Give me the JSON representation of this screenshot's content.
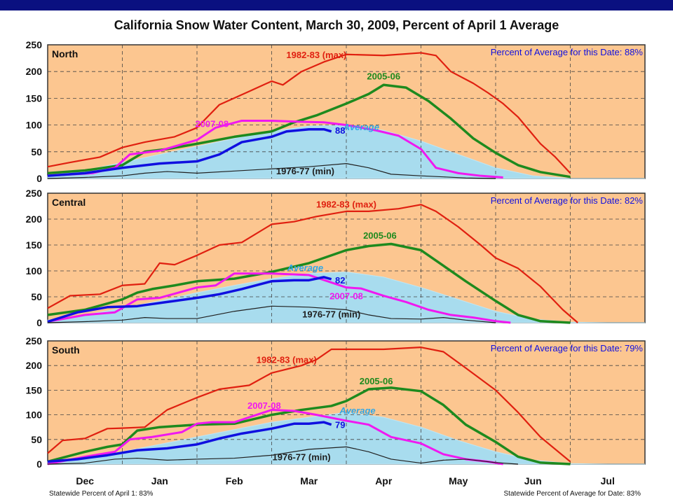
{
  "title": "California Snow Water Content, March 30, 2009, Percent of April 1 Average",
  "footer": {
    "left": "Statewide Percent of April 1: 83%",
    "right": "Statewide Percent of Average for Date: 83%"
  },
  "colors": {
    "background": "#FCC690",
    "average_fill": "#A8DCEE",
    "max": "#E02010",
    "y2005": "#1E8A1E",
    "y2007": "#F018F0",
    "current": "#1010E0",
    "min": "#202020",
    "average_label": "#30A8E8",
    "percent_label": "#1010E0"
  },
  "chart_data": [
    {
      "type": "line",
      "panel": "North",
      "note": "Percent of Average for this Date:  88%",
      "ylim": [
        0,
        250
      ],
      "yticks": [
        "0",
        "50",
        "100",
        "150",
        "200",
        "250"
      ],
      "xticks": [
        "Dec",
        "Jan",
        "Feb",
        "Mar",
        "Apr",
        "May",
        "Jun",
        "Jul"
      ],
      "xlim": [
        0,
        8
      ],
      "series": [
        {
          "name": "Average",
          "kind": "area",
          "x": [
            0,
            0.5,
            1,
            1.5,
            2,
            2.5,
            3,
            3.5,
            4,
            4.5,
            5,
            5.5,
            6,
            6.5,
            7,
            7.5,
            8
          ],
          "y": [
            5,
            15,
            30,
            45,
            60,
            75,
            88,
            98,
            100,
            90,
            70,
            45,
            20,
            5,
            0,
            0,
            0
          ]
        },
        {
          "name": "1982-83 (max)",
          "kind": "max",
          "x": [
            0,
            0.3,
            0.7,
            1,
            1.3,
            1.7,
            2,
            2.3,
            2.7,
            3,
            3.15,
            3.4,
            3.7,
            4,
            4.5,
            5,
            5.2,
            5.4,
            5.7,
            5.9,
            6.1,
            6.3,
            6.6,
            6.8,
            7
          ],
          "y": [
            22,
            30,
            40,
            58,
            68,
            78,
            95,
            138,
            163,
            182,
            175,
            200,
            218,
            232,
            230,
            235,
            230,
            200,
            178,
            160,
            140,
            115,
            65,
            40,
            10
          ]
        },
        {
          "name": "2005-06",
          "kind": "y2005",
          "x": [
            0,
            0.5,
            1,
            1.3,
            1.6,
            2,
            2.5,
            3,
            3.3,
            3.6,
            4,
            4.3,
            4.5,
            4.8,
            5.1,
            5.4,
            5.7,
            6,
            6.3,
            6.6,
            7
          ],
          "y": [
            10,
            15,
            25,
            50,
            55,
            65,
            78,
            88,
            105,
            118,
            140,
            158,
            175,
            170,
            145,
            112,
            75,
            48,
            25,
            12,
            3
          ]
        },
        {
          "name": "2007-08",
          "kind": "y2007",
          "x": [
            0,
            0.6,
            0.9,
            1.1,
            1.5,
            2,
            2.25,
            2.6,
            3,
            3.4,
            3.7,
            4,
            4.4,
            4.7,
            5,
            5.2,
            5.5,
            5.8,
            6.1
          ],
          "y": [
            5,
            10,
            20,
            45,
            52,
            72,
            95,
            108,
            108,
            106,
            105,
            100,
            90,
            80,
            55,
            20,
            10,
            5,
            2
          ]
        },
        {
          "name": "2009",
          "kind": "current",
          "x": [
            0,
            0.5,
            1,
            1.5,
            2,
            2.3,
            2.6,
            3,
            3.2,
            3.5,
            3.7,
            3.8
          ],
          "y": [
            5,
            10,
            20,
            28,
            32,
            45,
            68,
            78,
            88,
            92,
            92,
            88
          ]
        },
        {
          "name": "1976-77 (min)",
          "kind": "min",
          "x": [
            0,
            0.5,
            1,
            1.3,
            1.6,
            2,
            2.5,
            3,
            3.5,
            4,
            4.3,
            4.6,
            5,
            5.3,
            5.6,
            6
          ],
          "y": [
            0,
            2,
            5,
            10,
            13,
            10,
            14,
            18,
            22,
            28,
            20,
            8,
            5,
            3,
            1,
            0
          ]
        }
      ],
      "labels": [
        {
          "text": "1982-83 (max)",
          "kind": "max",
          "x": 3.6,
          "y": 225
        },
        {
          "text": "2005-06",
          "kind": "y2005",
          "x": 4.5,
          "y": 185
        },
        {
          "text": "2007-08",
          "kind": "y2007",
          "x": 2.2,
          "y": 96
        },
        {
          "text": "Average",
          "kind": "average_label",
          "x": 4.2,
          "y": 90,
          "italic": true
        },
        {
          "text": "88",
          "kind": "current",
          "x": 3.85,
          "y": 84
        },
        {
          "text": "1976-77 (min)",
          "kind": "min",
          "x": 3.45,
          "y": 8
        }
      ]
    },
    {
      "type": "line",
      "panel": "Central",
      "note": "Percent of Average for this Date:  82%",
      "ylim": [
        0,
        250
      ],
      "yticks": [
        "0",
        "50",
        "100",
        "150",
        "200",
        "250"
      ],
      "xticks": [
        "Dec",
        "Jan",
        "Feb",
        "Mar",
        "Apr",
        "May",
        "Jun",
        "Jul"
      ],
      "xlim": [
        0,
        8
      ],
      "series": [
        {
          "name": "Average",
          "kind": "area",
          "x": [
            0,
            0.5,
            1,
            1.5,
            2,
            2.5,
            3,
            3.5,
            4,
            4.5,
            5,
            5.5,
            6,
            6.5,
            7,
            7.5,
            8
          ],
          "y": [
            5,
            15,
            28,
            42,
            58,
            72,
            85,
            95,
            98,
            88,
            68,
            45,
            22,
            7,
            1,
            0,
            0
          ]
        },
        {
          "name": "1982-83 (max)",
          "kind": "max",
          "x": [
            0,
            0.3,
            0.7,
            1,
            1.3,
            1.5,
            1.7,
            2,
            2.3,
            2.6,
            3,
            3.3,
            3.6,
            4,
            4.3,
            4.7,
            5,
            5.2,
            5.5,
            5.8,
            6,
            6.3,
            6.6,
            6.9,
            7.1
          ],
          "y": [
            28,
            52,
            55,
            72,
            75,
            115,
            112,
            130,
            150,
            155,
            190,
            195,
            205,
            215,
            215,
            220,
            228,
            215,
            185,
            150,
            125,
            105,
            70,
            25,
            0
          ]
        },
        {
          "name": "2005-06",
          "kind": "y2005",
          "x": [
            0,
            0.5,
            1,
            1.2,
            1.4,
            1.7,
            2,
            2.5,
            3,
            3.5,
            4,
            4.3,
            4.6,
            5,
            5.3,
            5.6,
            6,
            6.3,
            6.6,
            7
          ],
          "y": [
            15,
            25,
            45,
            58,
            65,
            72,
            80,
            85,
            98,
            115,
            140,
            148,
            152,
            140,
            110,
            80,
            42,
            15,
            3,
            0
          ]
        },
        {
          "name": "2007-08",
          "kind": "y2007",
          "x": [
            0,
            0.5,
            0.9,
            1.2,
            1.5,
            2,
            2.25,
            2.5,
            3,
            3.5,
            4,
            4.2,
            4.5,
            4.8,
            5.1,
            5.4,
            5.7,
            6,
            6.2
          ],
          "y": [
            2,
            15,
            20,
            45,
            48,
            68,
            72,
            95,
            95,
            92,
            68,
            66,
            52,
            40,
            25,
            15,
            10,
            3,
            0
          ]
        },
        {
          "name": "2009",
          "kind": "current",
          "x": [
            0,
            0.4,
            0.8,
            1.2,
            1.6,
            2,
            2.3,
            2.6,
            3,
            3.3,
            3.5,
            3.7,
            3.8
          ],
          "y": [
            2,
            20,
            30,
            32,
            40,
            48,
            55,
            65,
            80,
            82,
            82,
            88,
            84
          ]
        },
        {
          "name": "1976-77 (min)",
          "kind": "min",
          "x": [
            0,
            0.5,
            1,
            1.3,
            1.6,
            2,
            2.5,
            3,
            3.5,
            4,
            4.3,
            4.6,
            5,
            5.3,
            5.6,
            6
          ],
          "y": [
            0,
            2,
            5,
            10,
            8,
            8,
            22,
            32,
            30,
            25,
            15,
            8,
            7,
            10,
            5,
            0
          ]
        }
      ],
      "labels": [
        {
          "text": "1982-83 (max)",
          "kind": "max",
          "x": 4.0,
          "y": 222
        },
        {
          "text": "2005-06",
          "kind": "y2005",
          "x": 4.45,
          "y": 162
        },
        {
          "text": "Average",
          "kind": "average_label",
          "x": 3.45,
          "y": 100,
          "italic": true
        },
        {
          "text": "82",
          "kind": "current",
          "x": 3.85,
          "y": 76
        },
        {
          "text": "2007-08",
          "kind": "y2007",
          "x": 4.0,
          "y": 45
        },
        {
          "text": "1976-77 (min)",
          "kind": "min",
          "x": 3.8,
          "y": 10
        }
      ]
    },
    {
      "type": "line",
      "panel": "South",
      "note": "Percent of Average for this Date:  79%",
      "ylim": [
        0,
        250
      ],
      "yticks": [
        "0",
        "50",
        "100",
        "150",
        "200",
        "250"
      ],
      "xticks": [
        "Dec",
        "Jan",
        "Feb",
        "Mar",
        "Apr",
        "May",
        "Jun",
        "Jul"
      ],
      "xlim": [
        0,
        8
      ],
      "series": [
        {
          "name": "Average",
          "kind": "area",
          "x": [
            0,
            0.5,
            1,
            1.5,
            2,
            2.5,
            3,
            3.5,
            4,
            4.5,
            5,
            5.5,
            6,
            6.5,
            7,
            7.5,
            8
          ],
          "y": [
            5,
            12,
            25,
            40,
            55,
            70,
            85,
            95,
            105,
            95,
            75,
            48,
            25,
            8,
            1,
            0,
            0
          ]
        },
        {
          "name": "1982-83 (max)",
          "kind": "max",
          "x": [
            0,
            0.2,
            0.5,
            0.8,
            1,
            1.3,
            1.6,
            2,
            2.3,
            2.7,
            3,
            3.4,
            3.6,
            3.8,
            4,
            4.5,
            5,
            5.3,
            5.6,
            6,
            6.3,
            6.6,
            7
          ],
          "y": [
            22,
            48,
            52,
            72,
            73,
            75,
            110,
            135,
            152,
            160,
            185,
            200,
            212,
            233,
            233,
            233,
            237,
            228,
            195,
            150,
            105,
            55,
            5
          ]
        },
        {
          "name": "2005-06",
          "kind": "y2005",
          "x": [
            0,
            0.5,
            0.8,
            1,
            1.2,
            1.5,
            2,
            2.5,
            3,
            3.4,
            3.8,
            4,
            4.3,
            4.6,
            5,
            5.3,
            5.6,
            6,
            6.3,
            6.6,
            7
          ],
          "y": [
            5,
            25,
            35,
            40,
            68,
            75,
            80,
            82,
            100,
            110,
            118,
            128,
            152,
            155,
            148,
            120,
            80,
            45,
            15,
            3,
            0
          ]
        },
        {
          "name": "2007-08",
          "kind": "y2007",
          "x": [
            0,
            0.5,
            0.9,
            1.1,
            1.4,
            1.8,
            2,
            2.2,
            2.5,
            2.8,
            3,
            3.3,
            3.6,
            4,
            4.3,
            4.6,
            5,
            5.3,
            5.6,
            5.9,
            6.1
          ],
          "y": [
            0,
            15,
            25,
            50,
            55,
            65,
            82,
            85,
            85,
            100,
            110,
            108,
            100,
            88,
            80,
            55,
            42,
            20,
            10,
            5,
            0
          ]
        },
        {
          "name": "2009",
          "kind": "current",
          "x": [
            0,
            0.4,
            0.8,
            1.2,
            1.6,
            2,
            2.3,
            2.6,
            3,
            3.3,
            3.5,
            3.7,
            3.8
          ],
          "y": [
            5,
            10,
            18,
            28,
            32,
            40,
            52,
            62,
            72,
            82,
            82,
            85,
            80
          ]
        },
        {
          "name": "1976-77 (min)",
          "kind": "min",
          "x": [
            0,
            0.5,
            0.9,
            1.2,
            1.6,
            2,
            2.5,
            3,
            3.5,
            4,
            4.3,
            4.6,
            5,
            5.3,
            5.6,
            6,
            6.3
          ],
          "y": [
            0,
            2,
            10,
            12,
            8,
            10,
            12,
            18,
            30,
            35,
            25,
            10,
            2,
            8,
            10,
            3,
            0
          ]
        }
      ],
      "labels": [
        {
          "text": "1982-83 (max)",
          "kind": "max",
          "x": 3.2,
          "y": 205
        },
        {
          "text": "2005-06",
          "kind": "y2005",
          "x": 4.4,
          "y": 162
        },
        {
          "text": "2007-08",
          "kind": "y2007",
          "x": 2.9,
          "y": 112
        },
        {
          "text": "Average",
          "kind": "average_label",
          "x": 4.15,
          "y": 102,
          "italic": true
        },
        {
          "text": "79",
          "kind": "current",
          "x": 3.85,
          "y": 73
        },
        {
          "text": "1976-77 (min)",
          "kind": "min",
          "x": 3.4,
          "y": 8
        }
      ]
    }
  ]
}
